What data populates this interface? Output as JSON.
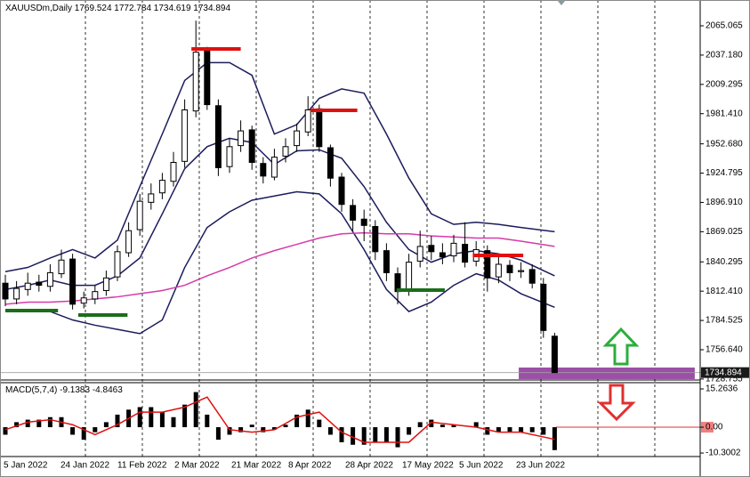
{
  "chart_data": {
    "type": "candlestick",
    "symbol": "XAUUSDm,Daily",
    "ylim": [
      1727.83,
      2089.64
    ],
    "yticks": [
      2065.065,
      {
        "value": 2037.18,
        "label": "2037.180"
      },
      2009.295,
      {
        "value": 1981.41,
        "label": "1981.410"
      },
      {
        "value": 1952.68,
        "label": "1952.680"
      },
      1924.795,
      {
        "value": 1896.91,
        "label": "1896.910"
      },
      1869.025,
      1840.295,
      {
        "value": 1812.41,
        "label": "1812.410"
      },
      1784.525,
      {
        "value": 1756.64,
        "label": "1756.640"
      },
      1728.755
    ],
    "dates": [
      "5 Jan 2022",
      "24 Jan 2022",
      "11 Feb 2022",
      "2 Mar 2022",
      "21 Mar 2022",
      "8 Apr 2022",
      "28 Apr 2022",
      "17 May 2022",
      "5 Jun 2022",
      "23 Jun 2022"
    ],
    "open": [
      1820,
      1805,
      1814,
      1821,
      1817,
      1829,
      1843,
      1801,
      1805,
      1813,
      1826,
      1849,
      1871,
      1897,
      1906,
      1917,
      1936,
      1984,
      2041,
      1989,
      1931,
      1951,
      1966,
      1934,
      1921,
      1941,
      1951,
      1964,
      1986,
      1949,
      1921,
      1894,
      1881,
      1874,
      1851,
      1829,
      1813,
      1841,
      1856,
      1849,
      1846,
      1857,
      1841,
      1851,
      1826,
      1837,
      1831,
      1833,
      1819,
      1769.524
    ],
    "high": [
      1828,
      1822,
      1830,
      1828,
      1838,
      1852,
      1848,
      1812,
      1818,
      1832,
      1856,
      1878,
      1905,
      1915,
      1925,
      1945,
      1995,
      2070,
      2045,
      1995,
      1958,
      1975,
      1970,
      1940,
      1948,
      1958,
      1972,
      1998,
      1990,
      1952,
      1925,
      1900,
      1890,
      1880,
      1858,
      1835,
      1848,
      1870,
      1865,
      1858,
      1866,
      1878,
      1860,
      1856,
      1845,
      1842,
      1840,
      1838,
      1825,
      1772.784
    ],
    "low": [
      1798,
      1800,
      1808,
      1812,
      1812,
      1825,
      1795,
      1796,
      1800,
      1808,
      1822,
      1845,
      1865,
      1890,
      1900,
      1912,
      1930,
      1978,
      1985,
      1922,
      1925,
      1945,
      1928,
      1915,
      1918,
      1935,
      1945,
      1960,
      1945,
      1912,
      1888,
      1870,
      1860,
      1842,
      1822,
      1800,
      1808,
      1835,
      1842,
      1838,
      1840,
      1835,
      1836,
      1812,
      1820,
      1822,
      1825,
      1815,
      1768,
      1734.619
    ],
    "close": [
      1805,
      1815,
      1820,
      1818,
      1830,
      1842,
      1800,
      1806,
      1812,
      1825,
      1850,
      1870,
      1898,
      1905,
      1918,
      1935,
      1985,
      2040,
      1990,
      1930,
      1950,
      1965,
      1935,
      1922,
      1940,
      1950,
      1965,
      1985,
      1950,
      1920,
      1895,
      1880,
      1875,
      1850,
      1830,
      1812,
      1840,
      1855,
      1850,
      1845,
      1858,
      1840,
      1852,
      1825,
      1838,
      1830,
      1832,
      1820,
      1775,
      1734.894
    ],
    "indicator_x": [
      0,
      2,
      4,
      6,
      8,
      10,
      12,
      14,
      16,
      18,
      20,
      22,
      24,
      26,
      28,
      30,
      32,
      34,
      36,
      38,
      40,
      42,
      44,
      46,
      49
    ],
    "bands": [
      {
        "color": "#1c1c5c",
        "values": [
          1831,
          1835,
          1844,
          1852,
          1844,
          1861,
          1912,
          1962,
          2013,
          2030,
          2030,
          2018,
          1962,
          1971,
          1996,
          2005,
          2001,
          1962,
          1920,
          1886,
          1876,
          1878,
          1876,
          1873,
          1869
        ]
      },
      {
        "color": "#1c1c5c",
        "values": [
          1814,
          1818,
          1823,
          1818,
          1818,
          1827,
          1844,
          1886,
          1929,
          1950,
          1958,
          1954,
          1933,
          1946,
          1947,
          1939,
          1912,
          1878,
          1852,
          1840,
          1848,
          1851,
          1848,
          1842,
          1827
        ]
      },
      {
        "color": "#1c1c5c",
        "values": [
          1793,
          1795,
          1793,
          1785,
          1780,
          1776,
          1772,
          1785,
          1835,
          1873,
          1888,
          1899,
          1903,
          1907,
          1905,
          1886,
          1852,
          1814,
          1793,
          1802,
          1818,
          1829,
          1823,
          1810,
          1797
        ]
      },
      {
        "color": "#d63aa9",
        "values": [
          1800,
          1802,
          1802,
          1803,
          1805,
          1807,
          1810,
          1813,
          1818,
          1827,
          1835,
          1844,
          1851,
          1857,
          1863,
          1867,
          1868,
          1867,
          1867,
          1865,
          1864,
          1863,
          1863,
          1860,
          1855
        ]
      }
    ],
    "resistance_levels": [
      {
        "price": 2043,
        "from": 16.6,
        "to": 21
      },
      {
        "price": 1984.6,
        "from": 27.2,
        "to": 31.4
      },
      {
        "price": 1846.5,
        "from": 41.7,
        "to": 46.2
      }
    ],
    "support_levels": [
      {
        "price": 1793.9,
        "from": 0,
        "to": 4.7
      },
      {
        "price": 1789.7,
        "from": 6.5,
        "to": 10.9
      },
      {
        "price": 1813.4,
        "from": 34.9,
        "to": 39.2
      }
    ],
    "zone": {
      "low": 1728.7,
      "high": 1739.7,
      "from": 45.8,
      "to": 61.5
    },
    "macd": {
      "name": "MACD(5,7,4)",
      "ylim": [
        -11.7,
        17.4
      ],
      "yticks": [
        15.2636,
        {
          "value": 0,
          "label": "0.00"
        },
        -10.3002
      ],
      "histogram": [
        -3,
        2,
        3,
        3,
        4,
        4,
        -3,
        -5,
        -2,
        2,
        5,
        7,
        8,
        8,
        6,
        4,
        9,
        14,
        5,
        -5,
        -3,
        -2,
        1,
        -2,
        -1,
        1,
        5,
        7,
        3,
        -3,
        -6,
        -7,
        -7,
        -6,
        -6,
        -8,
        -3,
        2,
        3,
        1,
        1,
        0,
        2,
        -3,
        -2,
        -2,
        -2,
        -2,
        -3,
        -9.1383
      ],
      "signal": [
        -1,
        2,
        3,
        1,
        -3,
        1,
        6,
        6,
        8,
        12,
        -1,
        -2,
        -1,
        4,
        6,
        -2,
        -6,
        -6,
        -6,
        2,
        1,
        0,
        -2,
        -2,
        -4.8463
      ]
    }
  }
}
